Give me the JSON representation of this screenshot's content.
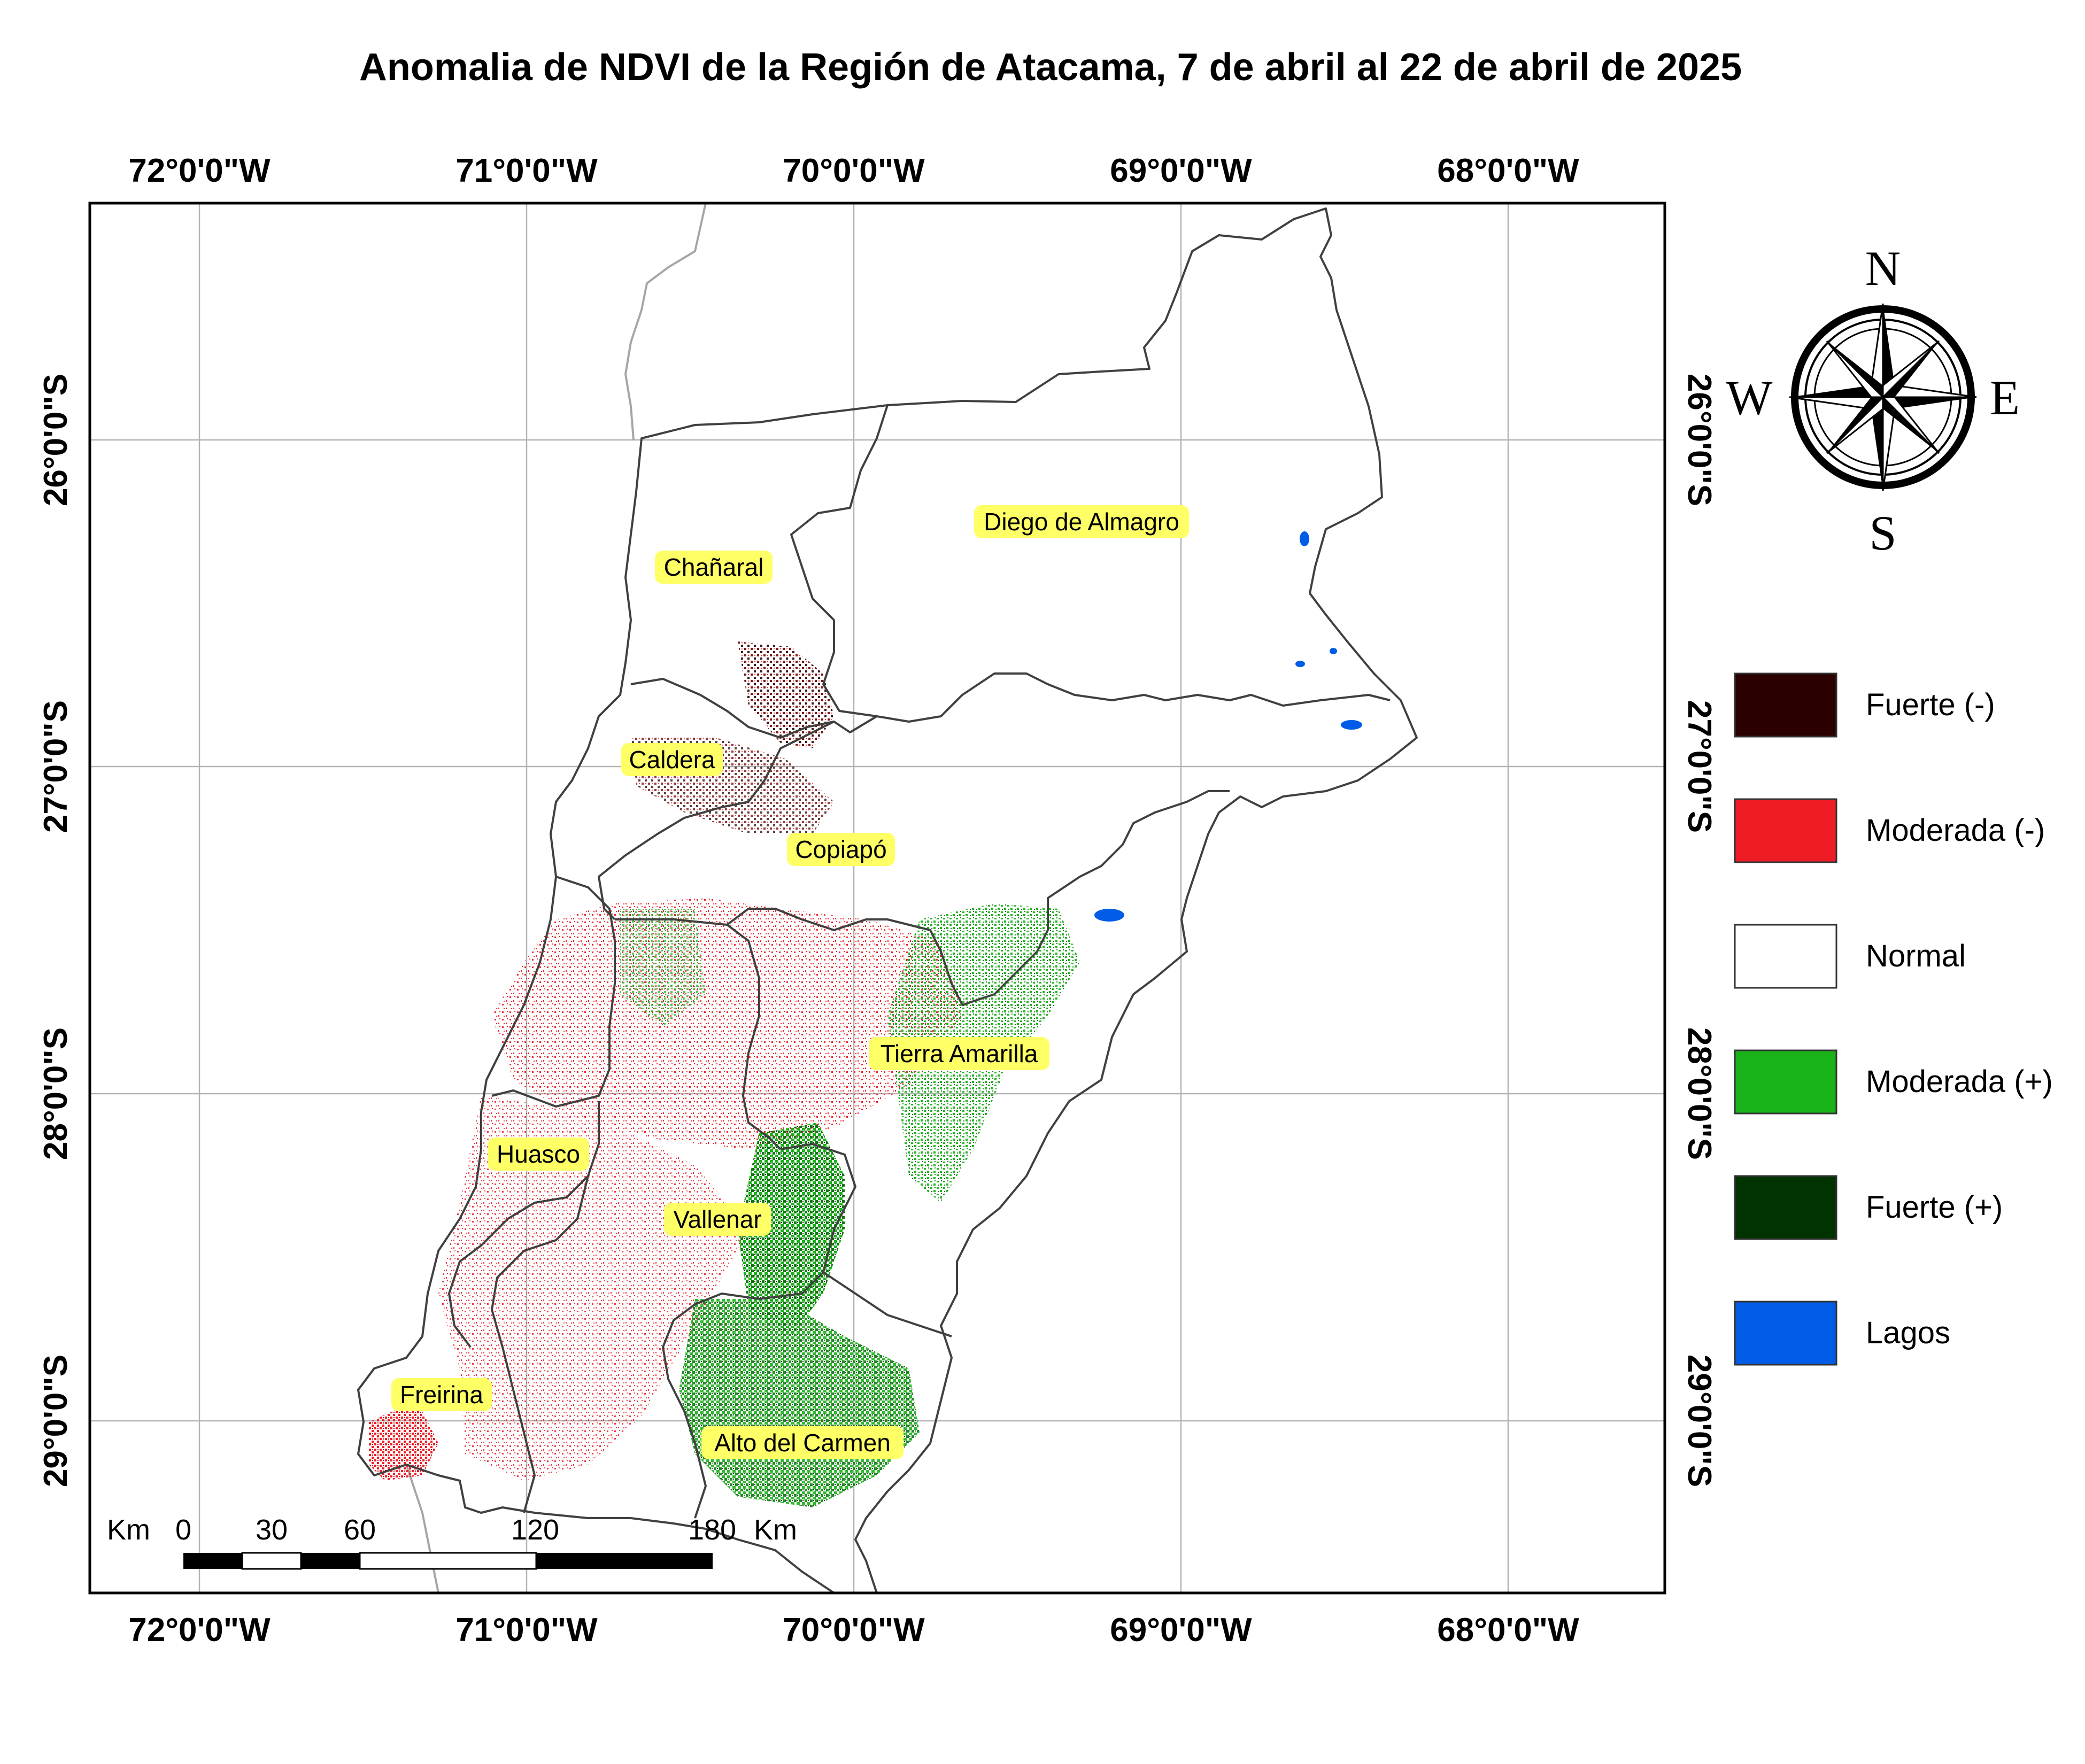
{
  "title": "Anomalia de NDVI de la Región de Atacama, 7 de abril al 22 de abril de 2025",
  "axes": {
    "longitude_ticks": [
      "72°0'0\"W",
      "71°0'0\"W",
      "70°0'0\"W",
      "69°0'0\"W",
      "68°0'0\"W"
    ],
    "latitude_ticks": [
      "26°0'0\"S",
      "27°0'0\"S",
      "28°0'0\"S",
      "29°0'0\"S"
    ],
    "graticule": true
  },
  "places": [
    {
      "name": "Diego de Almagro"
    },
    {
      "name": "Chañaral"
    },
    {
      "name": "Caldera"
    },
    {
      "name": "Copiapó"
    },
    {
      "name": "Tierra Amarilla"
    },
    {
      "name": "Huasco"
    },
    {
      "name": "Vallenar"
    },
    {
      "name": "Freirina"
    },
    {
      "name": "Alto del Carmen"
    }
  ],
  "legend": {
    "items": [
      {
        "label": "Fuerte (-)",
        "color": "#2a0000"
      },
      {
        "label": "Moderada (-)",
        "color": "#ee1c25"
      },
      {
        "label": "Normal",
        "color": "#ffffff"
      },
      {
        "label": "Moderada (+)",
        "color": "#19b219"
      },
      {
        "label": "Fuerte (+)",
        "color": "#003300"
      },
      {
        "label": "Lagos",
        "color": "#005ce6"
      }
    ]
  },
  "scale_bar": {
    "unit_left": "Km",
    "ticks": [
      "0",
      "30",
      "60",
      "120",
      "180"
    ],
    "unit_right": "Km"
  },
  "compass": {
    "n": "N",
    "s": "S",
    "e": "E",
    "w": "W"
  },
  "colors": {
    "boundary": "#404040",
    "label_highlight": "#ffff66",
    "neighbor_line": "#a6a6a6"
  }
}
